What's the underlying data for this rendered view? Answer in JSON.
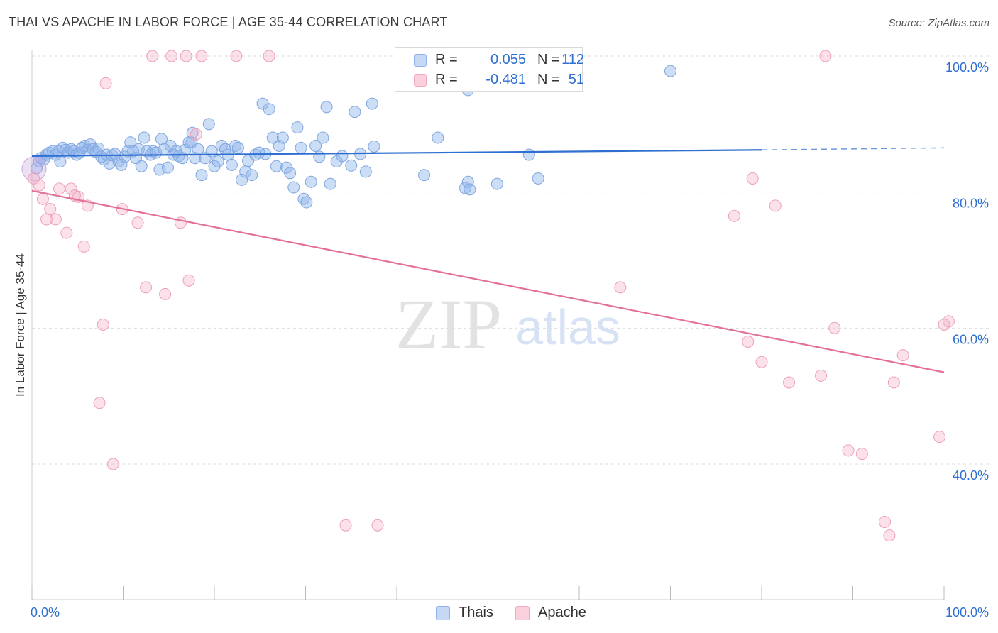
{
  "header": {
    "title": "THAI VS APACHE IN LABOR FORCE | AGE 35-44 CORRELATION CHART",
    "source": "Source: ZipAtlas.com"
  },
  "watermark": {
    "zip": "ZIP",
    "atlas": "atlas"
  },
  "legend": {
    "rows": [
      {
        "r_label": "R =",
        "r_value": "0.055",
        "n_label": "N =",
        "n_value": "112"
      },
      {
        "r_label": "R =",
        "r_value": "-0.481",
        "n_label": "N =",
        "n_value": "51"
      }
    ]
  },
  "chart_data": {
    "type": "scatter",
    "title": "THAI VS APACHE IN LABOR FORCE | AGE 35-44 CORRELATION CHART",
    "xlabel": "",
    "ylabel": "In Labor Force | Age 35-44",
    "xlim": [
      0,
      100
    ],
    "ylim": [
      19,
      102
    ],
    "x_tick_labels": [
      "0.0%",
      "100.0%"
    ],
    "y_ticks": [
      40,
      60,
      80,
      100
    ],
    "y_tick_labels": [
      "40.0%",
      "60.0%",
      "80.0%",
      "100.0%"
    ],
    "grid": true,
    "colors": {
      "thais": "#8fb4ea",
      "apache": "#f3a9c0",
      "thais_line": "#2f6fd1",
      "apache_line": "#e4709a",
      "tick_text": "#2f6fd1"
    },
    "series": [
      {
        "name": "Thais",
        "r": 0.055,
        "n": 112,
        "trend": {
          "x0": 0,
          "y0": 85.3,
          "x1": 80,
          "y1": 86.2,
          "dash_to_x": 100,
          "dash_to_y": 86.5
        },
        "points": [
          [
            0.5,
            83.5
          ],
          [
            0.8,
            84.5
          ],
          [
            1.0,
            85.0
          ],
          [
            1.3,
            84.8
          ],
          [
            1.6,
            85.5
          ],
          [
            1.9,
            85.8
          ],
          [
            2.3,
            86.0
          ],
          [
            2.6,
            85.5
          ],
          [
            2.9,
            86.0
          ],
          [
            3.1,
            84.5
          ],
          [
            3.4,
            86.5
          ],
          [
            3.7,
            86.2
          ],
          [
            4.0,
            85.8
          ],
          [
            4.3,
            86.3
          ],
          [
            4.6,
            86.0
          ],
          [
            4.9,
            85.5
          ],
          [
            5.2,
            85.8
          ],
          [
            5.5,
            86.5
          ],
          [
            5.8,
            86.8
          ],
          [
            6.1,
            86.2
          ],
          [
            6.4,
            87.0
          ],
          [
            6.7,
            86.3
          ],
          [
            7.0,
            85.9
          ],
          [
            7.3,
            86.4
          ],
          [
            7.6,
            85.2
          ],
          [
            7.9,
            84.8
          ],
          [
            8.2,
            85.5
          ],
          [
            8.5,
            84.2
          ],
          [
            8.8,
            85.4
          ],
          [
            9.1,
            85.6
          ],
          [
            9.5,
            84.5
          ],
          [
            9.8,
            84.0
          ],
          [
            10.2,
            85.2
          ],
          [
            10.5,
            86.0
          ],
          [
            10.8,
            87.3
          ],
          [
            11.1,
            86.0
          ],
          [
            11.4,
            85.0
          ],
          [
            11.7,
            86.3
          ],
          [
            12.0,
            83.8
          ],
          [
            12.3,
            88.0
          ],
          [
            12.6,
            86.0
          ],
          [
            13.0,
            85.5
          ],
          [
            13.3,
            86.0
          ],
          [
            13.6,
            85.8
          ],
          [
            14.0,
            83.3
          ],
          [
            14.2,
            87.8
          ],
          [
            14.5,
            86.3
          ],
          [
            14.9,
            83.6
          ],
          [
            15.2,
            86.8
          ],
          [
            15.5,
            85.5
          ],
          [
            15.8,
            86.0
          ],
          [
            16.1,
            85.3
          ],
          [
            16.5,
            85.0
          ],
          [
            16.8,
            86.2
          ],
          [
            17.2,
            87.3
          ],
          [
            17.5,
            87.3
          ],
          [
            17.6,
            88.7
          ],
          [
            17.9,
            85.0
          ],
          [
            18.2,
            86.3
          ],
          [
            18.6,
            82.5
          ],
          [
            19.0,
            85.0
          ],
          [
            19.4,
            90.0
          ],
          [
            19.7,
            86.0
          ],
          [
            20.0,
            83.8
          ],
          [
            20.4,
            84.5
          ],
          [
            20.8,
            86.8
          ],
          [
            21.2,
            86.3
          ],
          [
            21.5,
            85.5
          ],
          [
            21.9,
            84.0
          ],
          [
            22.3,
            86.8
          ],
          [
            22.6,
            86.5
          ],
          [
            23.0,
            81.8
          ],
          [
            23.4,
            83.0
          ],
          [
            23.7,
            84.6
          ],
          [
            24.1,
            82.5
          ],
          [
            24.5,
            85.5
          ],
          [
            24.9,
            85.8
          ],
          [
            25.3,
            93.0
          ],
          [
            25.6,
            85.6
          ],
          [
            26.0,
            92.2
          ],
          [
            26.4,
            88.0
          ],
          [
            26.8,
            83.8
          ],
          [
            27.1,
            86.8
          ],
          [
            27.5,
            88.0
          ],
          [
            27.9,
            83.6
          ],
          [
            28.3,
            82.8
          ],
          [
            28.7,
            80.7
          ],
          [
            29.1,
            89.5
          ],
          [
            29.5,
            86.5
          ],
          [
            29.8,
            79.0
          ],
          [
            30.1,
            78.5
          ],
          [
            30.6,
            81.5
          ],
          [
            31.1,
            86.8
          ],
          [
            31.5,
            85.2
          ],
          [
            31.9,
            88.0
          ],
          [
            32.3,
            92.5
          ],
          [
            32.7,
            81.2
          ],
          [
            33.4,
            84.5
          ],
          [
            34.0,
            85.3
          ],
          [
            35.0,
            83.9
          ],
          [
            35.4,
            91.8
          ],
          [
            36.0,
            85.6
          ],
          [
            36.6,
            83.0
          ],
          [
            37.3,
            93.0
          ],
          [
            37.5,
            86.7
          ],
          [
            43.0,
            82.5
          ],
          [
            44.5,
            88.0
          ],
          [
            47.5,
            80.6
          ],
          [
            47.8,
            81.5
          ],
          [
            48.0,
            80.4
          ],
          [
            51.0,
            81.2
          ],
          [
            54.5,
            85.5
          ],
          [
            55.5,
            82.0
          ],
          [
            70.0,
            97.8
          ]
        ],
        "extra_points": [
          [
            47.8,
            95.0
          ]
        ]
      },
      {
        "name": "Apache",
        "r": -0.481,
        "n": 51,
        "trend": {
          "x0": 0,
          "y0": 80.2,
          "x1": 100,
          "y1": 53.5
        },
        "points": [
          [
            0.2,
            82.0
          ],
          [
            0.8,
            81.0
          ],
          [
            1.2,
            79.0
          ],
          [
            1.6,
            76.0
          ],
          [
            2.0,
            77.5
          ],
          [
            2.6,
            76.0
          ],
          [
            3.0,
            80.5
          ],
          [
            3.8,
            74.0
          ],
          [
            4.3,
            80.5
          ],
          [
            4.7,
            79.5
          ],
          [
            5.1,
            79.3
          ],
          [
            5.7,
            72.0
          ],
          [
            6.1,
            78.0
          ],
          [
            7.4,
            49.0
          ],
          [
            7.8,
            60.5
          ],
          [
            8.1,
            96.0
          ],
          [
            8.9,
            40.0
          ],
          [
            9.9,
            77.5
          ],
          [
            11.6,
            75.5
          ],
          [
            12.5,
            66.0
          ],
          [
            13.2,
            100.0
          ],
          [
            14.6,
            65.0
          ],
          [
            15.3,
            100.0
          ],
          [
            16.3,
            75.5
          ],
          [
            16.9,
            100.0
          ],
          [
            17.2,
            67.0
          ],
          [
            18.0,
            88.5
          ],
          [
            18.6,
            100.0
          ],
          [
            22.4,
            100.0
          ],
          [
            26.0,
            100.0
          ],
          [
            34.4,
            31.0
          ],
          [
            37.9,
            31.0
          ],
          [
            64.5,
            66.0
          ],
          [
            77.0,
            76.5
          ],
          [
            78.5,
            58.0
          ],
          [
            79.0,
            82.0
          ],
          [
            80.0,
            55.0
          ],
          [
            81.5,
            78.0
          ],
          [
            83.0,
            52.0
          ],
          [
            86.5,
            53.0
          ],
          [
            87.0,
            100.0
          ],
          [
            88.0,
            60.0
          ],
          [
            89.5,
            42.0
          ],
          [
            91.0,
            41.5
          ],
          [
            93.5,
            31.5
          ],
          [
            94.0,
            29.5
          ],
          [
            94.5,
            52.0
          ],
          [
            95.5,
            56.0
          ],
          [
            99.5,
            44.0
          ],
          [
            100.0,
            60.5
          ],
          [
            100.5,
            61.0
          ]
        ]
      }
    ],
    "legend": [
      "Thais",
      "Apache"
    ]
  }
}
